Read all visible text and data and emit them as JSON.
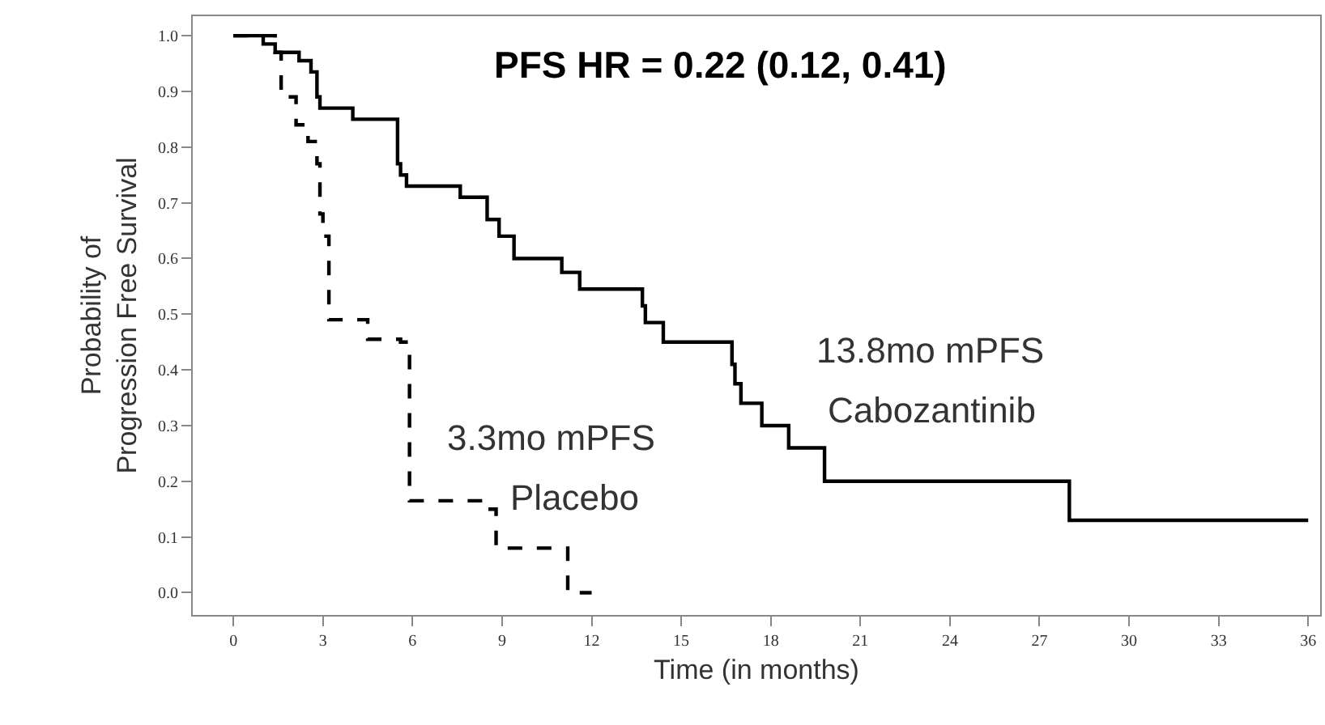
{
  "chart_data": {
    "type": "step",
    "xlabel": "Time (in months)",
    "ylabel": "Probability of\nProgression Free Survival",
    "series": [
      {
        "color": "#000000",
        "line_style": "solid",
        "x": [
          0,
          1.0,
          1.4,
          2.2,
          2.6,
          2.8,
          2.9,
          4.0,
          5.5,
          5.6,
          5.8,
          7.6,
          8.5,
          8.9,
          9.4,
          11.0,
          11.6,
          13.7,
          13.8,
          14.4,
          16.7,
          16.8,
          16.9,
          17.0,
          17.7,
          18.6,
          19.8,
          28.0,
          36
        ],
        "values": [
          1.0,
          0.985,
          0.97,
          0.955,
          0.935,
          0.89,
          0.87,
          0.85,
          0.77,
          0.75,
          0.73,
          0.71,
          0.67,
          0.64,
          0.6,
          0.575,
          0.545,
          0.515,
          0.485,
          0.45,
          0.41,
          0.375,
          0.375,
          0.34,
          0.3,
          0.26,
          0.2,
          0.13,
          0.13
        ]
      },
      {
        "color": "#000000",
        "line_style": "dashed",
        "x": [
          0,
          1.4,
          1.6,
          2.1,
          2.5,
          2.8,
          2.9,
          3.0,
          3.2,
          4.5,
          5.6,
          5.9,
          8.4,
          8.8,
          11.2,
          12
        ],
        "values": [
          1.0,
          0.97,
          0.89,
          0.84,
          0.81,
          0.77,
          0.68,
          0.64,
          0.49,
          0.455,
          0.45,
          0.165,
          0.15,
          0.08,
          0.0,
          0.0
        ]
      }
    ],
    "annotations": [
      "PFS HR = 0.22 (0.12, 0.41)",
      "13.8mo mPFS",
      "Cabozantinib",
      "3.3mo mPFS",
      "Placebo"
    ],
    "xlim": [
      -1.36,
      36.4
    ],
    "ylim": [
      -0.04,
      1.035
    ],
    "xticks": [
      0,
      3,
      6,
      9,
      12,
      15,
      18,
      21,
      24,
      27,
      30,
      33,
      36
    ],
    "yticks": [
      {
        "value": 0,
        "label": "0.0"
      },
      {
        "value": 0.1,
        "label": "0.1"
      },
      {
        "value": 0.2,
        "label": "0.2"
      },
      {
        "value": 0.3,
        "label": "0.3"
      },
      {
        "value": 0.4,
        "label": "0.4"
      },
      {
        "value": 0.5,
        "label": "0.5"
      },
      {
        "value": 0.6,
        "label": "0.6"
      },
      {
        "value": 0.7,
        "label": "0.7"
      },
      {
        "value": 0.8,
        "label": "0.8"
      },
      {
        "value": 0.9,
        "label": "0.9"
      },
      {
        "value": 1,
        "label": "1.0"
      }
    ],
    "grid": false,
    "marker": "none"
  }
}
